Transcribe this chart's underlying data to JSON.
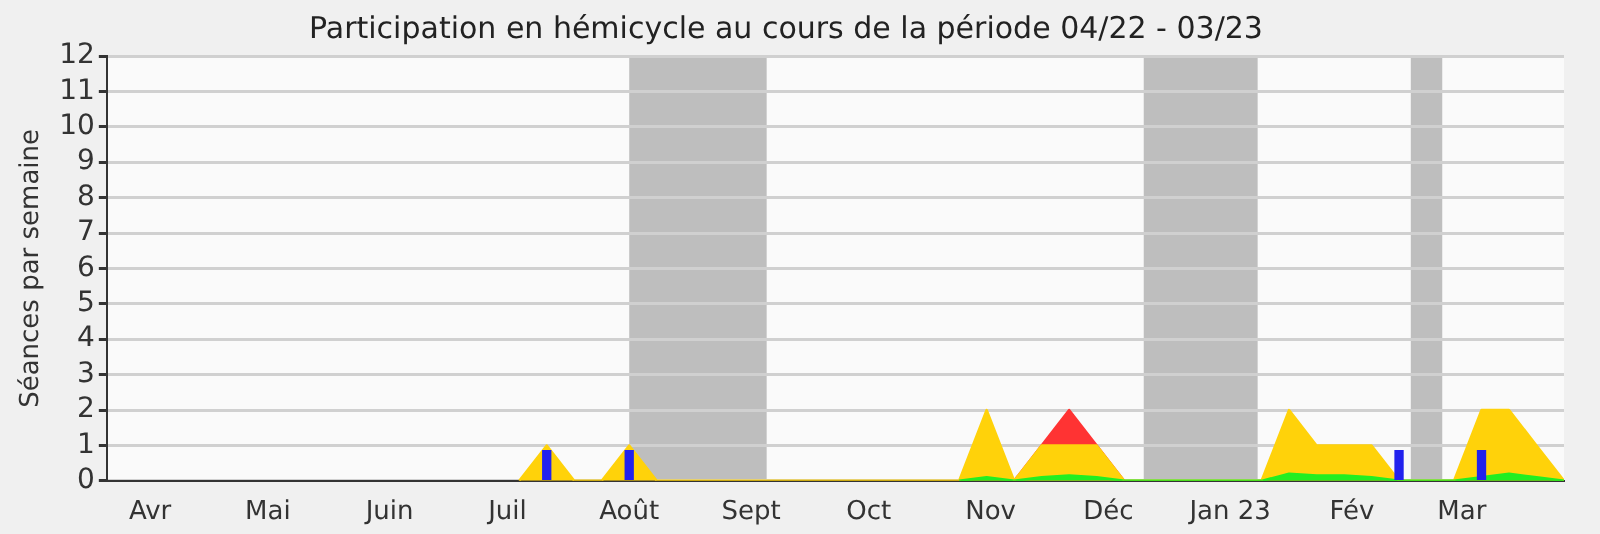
{
  "chart_data": {
    "type": "area",
    "title": "Participation en hémicycle au cours de la période 04/22 - 03/23",
    "ylabel": "Séances par semaine",
    "xlim": [
      "2022-03-21",
      "2023-03-27"
    ],
    "ylim": [
      0,
      12
    ],
    "yticks": [
      0,
      1,
      2,
      3,
      4,
      5,
      6,
      7,
      8,
      9,
      10,
      11,
      12
    ],
    "xticks": [
      {
        "value": "2022-04-01",
        "label": "Avr"
      },
      {
        "value": "2022-05-01",
        "label": "Mai"
      },
      {
        "value": "2022-06-01",
        "label": "Juin"
      },
      {
        "value": "2022-07-01",
        "label": "Juil"
      },
      {
        "value": "2022-08-01",
        "label": "Août"
      },
      {
        "value": "2022-09-01",
        "label": "Sept"
      },
      {
        "value": "2022-10-01",
        "label": "Oct"
      },
      {
        "value": "2022-11-01",
        "label": "Nov"
      },
      {
        "value": "2022-12-01",
        "label": "Déc"
      },
      {
        "value": "2023-01-01",
        "label": "Jan 23"
      },
      {
        "value": "2023-02-01",
        "label": "Fév"
      },
      {
        "value": "2023-03-01",
        "label": "Mar"
      }
    ],
    "grid": "y",
    "legend": false,
    "bands": [
      {
        "axis": "x",
        "from": "2022-08-01",
        "to": "2022-09-05",
        "color": "#aaaaaa"
      },
      {
        "axis": "x",
        "from": "2022-12-10",
        "to": "2023-01-08",
        "color": "#aaaaaa"
      },
      {
        "axis": "x",
        "from": "2023-02-16",
        "to": "2023-02-24",
        "color": "#aaaaaa"
      }
    ],
    "series": [
      {
        "color": "#ff3333",
        "x": [
          "2022-11-07",
          "2022-11-21",
          "2022-12-05"
        ],
        "values": [
          0,
          2,
          0
        ]
      },
      {
        "color": "#ffd20a",
        "x": [
          "2022-07-04",
          "2022-07-11",
          "2022-07-18",
          "2022-07-25",
          "2022-08-01",
          "2022-08-08",
          "2022-10-24",
          "2022-10-31",
          "2022-11-07",
          "2022-11-14",
          "2022-11-21",
          "2022-11-28",
          "2022-12-05",
          "2023-01-09",
          "2023-01-16",
          "2023-01-23",
          "2023-01-30",
          "2023-02-06",
          "2023-02-13",
          "2023-02-27",
          "2023-03-06",
          "2023-03-13",
          "2023-03-20",
          "2023-03-27"
        ],
        "values": [
          0,
          1,
          0,
          0,
          1,
          0,
          0,
          2,
          0,
          1,
          1,
          1,
          0,
          0,
          2,
          1,
          1,
          1,
          0,
          0,
          2,
          2,
          1,
          0
        ]
      },
      {
        "color": "#22ee22",
        "x": [
          "2022-10-24",
          "2022-10-31",
          "2022-11-07",
          "2022-11-14",
          "2022-11-21",
          "2022-11-28",
          "2022-12-05",
          "2023-01-09",
          "2023-01-16",
          "2023-01-23",
          "2023-01-30",
          "2023-02-06",
          "2023-02-13",
          "2023-02-27",
          "2023-03-06",
          "2023-03-13",
          "2023-03-20",
          "2023-03-27"
        ],
        "values": [
          0,
          0.1,
          0,
          0.1,
          0.15,
          0.1,
          0,
          0,
          0.2,
          0.15,
          0.15,
          0.1,
          0,
          0,
          0.1,
          0.2,
          0.1,
          0
        ]
      },
      {
        "type": "bar",
        "color": "#2222ee",
        "x": [
          "2022-07-11",
          "2022-08-01",
          "2023-02-13",
          "2023-03-06"
        ],
        "values": [
          0.85,
          0.85,
          0.85,
          0.85
        ]
      }
    ]
  }
}
